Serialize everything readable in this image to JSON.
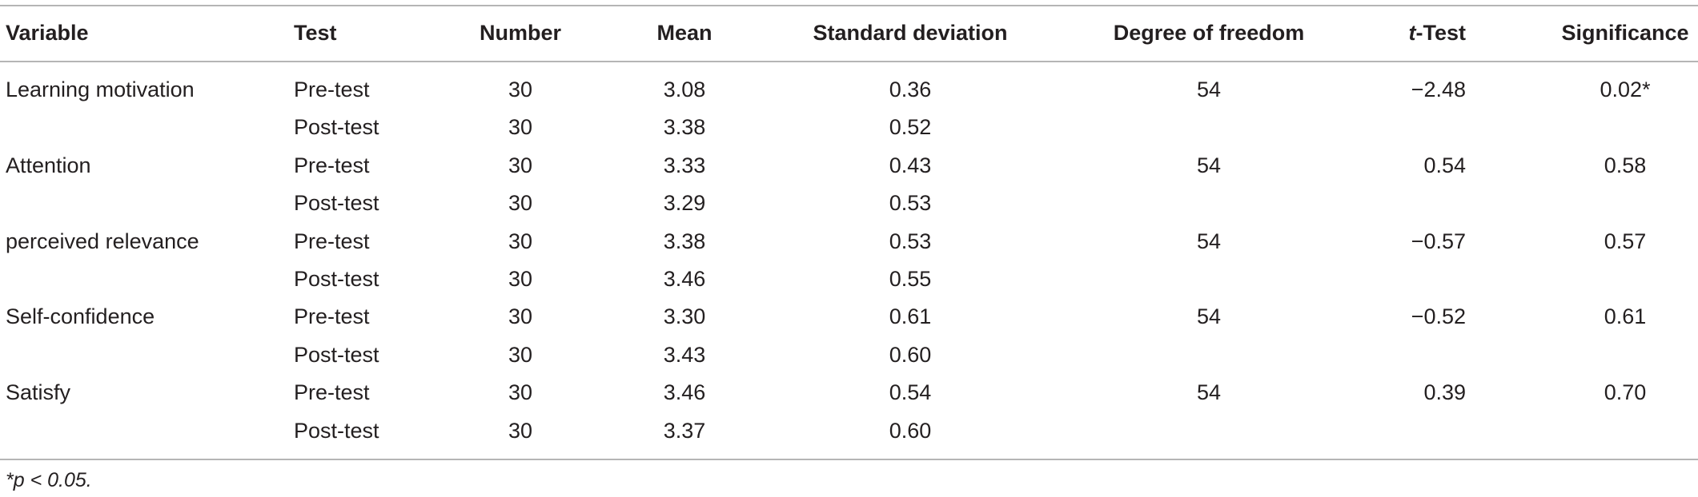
{
  "table": {
    "header": [
      "Variable",
      "Test",
      "Number",
      "Mean",
      "Standard deviation",
      "Degree of freedom",
      "t-Test",
      "Significance"
    ],
    "groups": [
      {
        "variable": "Learning motivation",
        "df": "54",
        "t": "−2.48",
        "sig": "0.02*",
        "tests": [
          {
            "test": "Pre-test",
            "number": "30",
            "mean": "3.08",
            "sd": "0.36"
          },
          {
            "test": "Post-test",
            "number": "30",
            "mean": "3.38",
            "sd": "0.52"
          }
        ]
      },
      {
        "variable": "Attention",
        "df": "54",
        "t": "0.54",
        "sig": "0.58",
        "tests": [
          {
            "test": "Pre-test",
            "number": "30",
            "mean": "3.33",
            "sd": "0.43"
          },
          {
            "test": "Post-test",
            "number": "30",
            "mean": "3.29",
            "sd": "0.53"
          }
        ]
      },
      {
        "variable": "perceived relevance",
        "df": "54",
        "t": "−0.57",
        "sig": "0.57",
        "tests": [
          {
            "test": "Pre-test",
            "number": "30",
            "mean": "3.38",
            "sd": "0.53"
          },
          {
            "test": "Post-test",
            "number": "30",
            "mean": "3.46",
            "sd": "0.55"
          }
        ]
      },
      {
        "variable": "Self-confidence",
        "df": "54",
        "t": "−0.52",
        "sig": "0.61",
        "tests": [
          {
            "test": "Pre-test",
            "number": "30",
            "mean": "3.30",
            "sd": "0.61"
          },
          {
            "test": "Post-test",
            "number": "30",
            "mean": "3.43",
            "sd": "0.60"
          }
        ]
      },
      {
        "variable": "Satisfy",
        "df": "54",
        "t": "0.39",
        "sig": "0.70",
        "tests": [
          {
            "test": "Pre-test",
            "number": "30",
            "mean": "3.46",
            "sd": "0.54"
          },
          {
            "test": "Post-test",
            "number": "30",
            "mean": "3.37",
            "sd": "0.60"
          }
        ]
      }
    ],
    "footnote": "*p < 0.05."
  }
}
